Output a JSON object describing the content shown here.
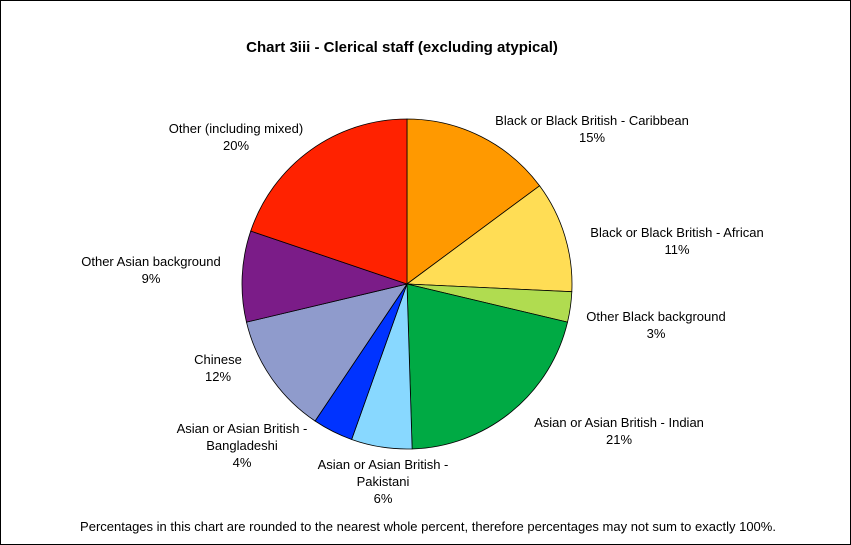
{
  "chart_data": {
    "type": "pie",
    "title": "Chart 3iii - Clerical staff (excluding atypical)",
    "footnote": "Percentages in this chart are rounded to the nearest whole percent, therefore percentages may not sum to exactly 100%.",
    "slices": [
      {
        "label": [
          "Black or Black British - Caribbean"
        ],
        "value": 15,
        "display": "15%",
        "color": "#FF9900"
      },
      {
        "label": [
          "Black or Black British - African"
        ],
        "value": 11,
        "display": "11%",
        "color": "#FFDD55"
      },
      {
        "label": [
          "Other Black background"
        ],
        "value": 3,
        "display": "3%",
        "color": "#B0DC50"
      },
      {
        "label": [
          "Asian or Asian British - Indian"
        ],
        "value": 21,
        "display": "21%",
        "color": "#00AA44"
      },
      {
        "label": [
          "Asian or Asian British -",
          "Pakistani"
        ],
        "value": 6,
        "display": "6%",
        "color": "#88D8FF"
      },
      {
        "label": [
          "Asian or Asian British -",
          "Bangladeshi"
        ],
        "value": 4,
        "display": "4%",
        "color": "#0033FF"
      },
      {
        "label": [
          "Chinese"
        ],
        "value": 12,
        "display": "12%",
        "color": "#8F9BCC"
      },
      {
        "label": [
          "Other Asian background"
        ],
        "value": 9,
        "display": "9%",
        "color": "#7B1C88"
      },
      {
        "label": [
          "Other (including mixed)"
        ],
        "value": 20,
        "display": "20%",
        "color": "#FF2200"
      }
    ]
  }
}
